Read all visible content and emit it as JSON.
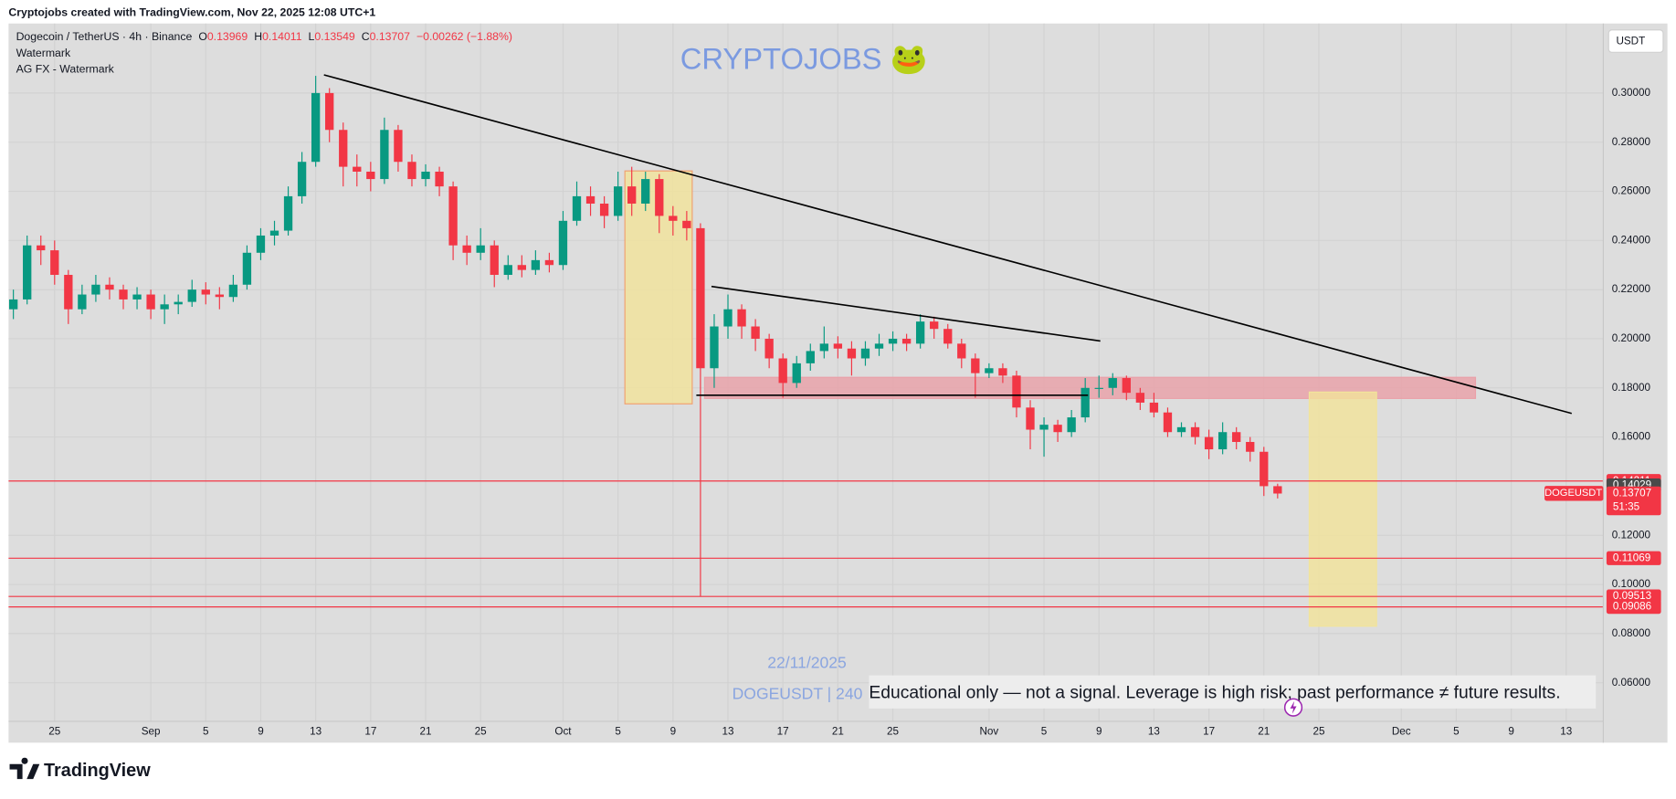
{
  "header": {
    "credit": "Cryptojobs created with TradingView.com, Nov 22, 2025 12:08 UTC+1",
    "watermark": "Watermark",
    "watermark2": "AG FX - Watermark",
    "brand": "CRYPTOJOBS 🐸",
    "currency": "USDT",
    "date_stamp": "22/11/2025",
    "symbol_stamp": "DOGEUSDT | 240",
    "disclaimer": "Educational only — not a signal. Leverage is high risk; past performance ≠ future results.",
    "logo": "TradingView"
  },
  "chart_data": {
    "type": "candlestick",
    "symbol": "Dogecoin / TetherUS · 4h · Binance",
    "ohlc_legend": {
      "o_label": "O",
      "o": 0.13969,
      "h_label": "H",
      "h": 0.14011,
      "l_label": "L",
      "l": 0.13549,
      "c_label": "C",
      "c": 0.13707,
      "change": "−0.00262 (−1.88%)"
    },
    "x": [
      -3,
      -2,
      -1,
      0,
      1,
      2,
      3,
      4,
      5,
      6,
      7,
      8,
      9,
      10,
      11,
      12,
      13,
      14,
      15,
      16,
      17,
      18,
      19,
      20,
      21,
      22,
      23,
      24,
      25,
      26,
      27,
      28,
      29,
      30,
      31,
      32,
      33,
      34,
      35,
      36,
      37,
      38,
      39,
      40,
      41,
      42,
      43,
      44,
      45,
      46,
      47,
      48,
      49,
      50,
      51,
      52,
      53,
      54,
      55,
      56,
      57,
      58,
      59,
      60,
      61,
      62,
      63,
      64,
      65,
      66,
      67,
      68,
      69,
      70,
      71,
      72,
      73,
      74,
      75,
      76,
      77,
      78,
      79,
      80,
      81,
      82,
      83,
      84,
      85,
      86,
      87,
      88,
      89
    ],
    "open": [
      0.212,
      0.216,
      0.238,
      0.236,
      0.226,
      0.212,
      0.218,
      0.222,
      0.22,
      0.216,
      0.218,
      0.212,
      0.214,
      0.215,
      0.22,
      0.218,
      0.217,
      0.222,
      0.235,
      0.242,
      0.244,
      0.258,
      0.272,
      0.3,
      0.285,
      0.27,
      0.268,
      0.265,
      0.285,
      0.272,
      0.265,
      0.268,
      0.262,
      0.238,
      0.235,
      0.238,
      0.226,
      0.23,
      0.228,
      0.232,
      0.23,
      0.248,
      0.258,
      0.255,
      0.25,
      0.262,
      0.255,
      0.265,
      0.25,
      0.248,
      0.245,
      0.188,
      0.205,
      0.212,
      0.205,
      0.2,
      0.192,
      0.182,
      0.19,
      0.195,
      0.198,
      0.196,
      0.192,
      0.196,
      0.198,
      0.2,
      0.198,
      0.207,
      0.204,
      0.198,
      0.192,
      0.186,
      0.188,
      0.185,
      0.172,
      0.163,
      0.165,
      0.162,
      0.168,
      0.18,
      0.18,
      0.184,
      0.178,
      0.174,
      0.17,
      0.162,
      0.164,
      0.16,
      0.155,
      0.162,
      0.158,
      0.154,
      0.14
    ],
    "high": [
      0.22,
      0.242,
      0.242,
      0.24,
      0.228,
      0.222,
      0.226,
      0.225,
      0.222,
      0.221,
      0.22,
      0.218,
      0.218,
      0.224,
      0.223,
      0.221,
      0.226,
      0.238,
      0.245,
      0.248,
      0.262,
      0.276,
      0.307,
      0.302,
      0.288,
      0.275,
      0.272,
      0.29,
      0.287,
      0.275,
      0.271,
      0.27,
      0.264,
      0.242,
      0.245,
      0.24,
      0.234,
      0.234,
      0.236,
      0.235,
      0.252,
      0.264,
      0.262,
      0.258,
      0.268,
      0.27,
      0.268,
      0.267,
      0.254,
      0.252,
      0.247,
      0.21,
      0.218,
      0.214,
      0.208,
      0.202,
      0.194,
      0.193,
      0.198,
      0.205,
      0.201,
      0.199,
      0.199,
      0.202,
      0.203,
      0.202,
      0.21,
      0.209,
      0.206,
      0.2,
      0.194,
      0.19,
      0.19,
      0.187,
      0.175,
      0.168,
      0.167,
      0.171,
      0.184,
      0.185,
      0.186,
      0.185,
      0.18,
      0.178,
      0.172,
      0.166,
      0.166,
      0.163,
      0.166,
      0.164,
      0.16,
      0.156,
      0.141
    ],
    "low": [
      0.208,
      0.214,
      0.23,
      0.222,
      0.206,
      0.21,
      0.215,
      0.216,
      0.212,
      0.212,
      0.208,
      0.206,
      0.21,
      0.213,
      0.214,
      0.212,
      0.215,
      0.22,
      0.232,
      0.238,
      0.242,
      0.255,
      0.27,
      0.28,
      0.262,
      0.262,
      0.26,
      0.263,
      0.268,
      0.262,
      0.262,
      0.258,
      0.232,
      0.23,
      0.232,
      0.221,
      0.224,
      0.225,
      0.226,
      0.227,
      0.228,
      0.246,
      0.25,
      0.245,
      0.248,
      0.25,
      0.252,
      0.243,
      0.242,
      0.24,
      0.095,
      0.18,
      0.2,
      0.2,
      0.195,
      0.188,
      0.176,
      0.18,
      0.187,
      0.192,
      0.192,
      0.185,
      0.189,
      0.193,
      0.195,
      0.195,
      0.196,
      0.2,
      0.196,
      0.188,
      0.176,
      0.184,
      0.182,
      0.168,
      0.155,
      0.152,
      0.158,
      0.16,
      0.166,
      0.176,
      0.177,
      0.175,
      0.171,
      0.168,
      0.16,
      0.16,
      0.157,
      0.151,
      0.153,
      0.155,
      0.15,
      0.136,
      0.135
    ],
    "close": [
      0.216,
      0.238,
      0.236,
      0.226,
      0.212,
      0.218,
      0.222,
      0.22,
      0.216,
      0.218,
      0.212,
      0.214,
      0.215,
      0.22,
      0.218,
      0.217,
      0.222,
      0.235,
      0.242,
      0.244,
      0.258,
      0.272,
      0.3,
      0.285,
      0.27,
      0.268,
      0.265,
      0.285,
      0.272,
      0.265,
      0.268,
      0.262,
      0.238,
      0.235,
      0.238,
      0.226,
      0.23,
      0.228,
      0.232,
      0.23,
      0.248,
      0.258,
      0.255,
      0.25,
      0.262,
      0.255,
      0.265,
      0.25,
      0.248,
      0.245,
      0.188,
      0.205,
      0.212,
      0.205,
      0.2,
      0.192,
      0.182,
      0.19,
      0.195,
      0.198,
      0.196,
      0.192,
      0.196,
      0.198,
      0.2,
      0.198,
      0.207,
      0.204,
      0.198,
      0.192,
      0.186,
      0.188,
      0.185,
      0.172,
      0.163,
      0.165,
      0.162,
      0.168,
      0.18,
      0.18,
      0.184,
      0.178,
      0.174,
      0.17,
      0.162,
      0.164,
      0.16,
      0.155,
      0.162,
      0.158,
      0.154,
      0.14,
      0.137
    ],
    "up_color": "#089981",
    "down_color": "#f23645",
    "xlim": [
      -3.35,
      112.7
    ],
    "xticks": [
      {
        "value": 0,
        "label": "25"
      },
      {
        "value": 7,
        "label": "Sep"
      },
      {
        "value": 11,
        "label": "5"
      },
      {
        "value": 15,
        "label": "9"
      },
      {
        "value": 19,
        "label": "13"
      },
      {
        "value": 23,
        "label": "17"
      },
      {
        "value": 27,
        "label": "21"
      },
      {
        "value": 31,
        "label": "25"
      },
      {
        "value": 37,
        "label": "Oct"
      },
      {
        "value": 41,
        "label": "5"
      },
      {
        "value": 45,
        "label": "9"
      },
      {
        "value": 49,
        "label": "13"
      },
      {
        "value": 53,
        "label": "17"
      },
      {
        "value": 57,
        "label": "21"
      },
      {
        "value": 61,
        "label": "25"
      },
      {
        "value": 68,
        "label": "Nov"
      },
      {
        "value": 72,
        "label": "5"
      },
      {
        "value": 76,
        "label": "9"
      },
      {
        "value": 80,
        "label": "13"
      },
      {
        "value": 84,
        "label": "17"
      },
      {
        "value": 88,
        "label": "21"
      },
      {
        "value": 92,
        "label": "25"
      },
      {
        "value": 98,
        "label": "Dec"
      },
      {
        "value": 102,
        "label": "5"
      },
      {
        "value": 106,
        "label": "9"
      },
      {
        "value": 110,
        "label": "13"
      }
    ],
    "ylim": [
      0.0443,
      0.3283
    ],
    "yticks": [
      {
        "value": 0.3,
        "label": "0.30000"
      },
      {
        "value": 0.28,
        "label": "0.28000"
      },
      {
        "value": 0.26,
        "label": "0.26000"
      },
      {
        "value": 0.24,
        "label": "0.24000"
      },
      {
        "value": 0.22,
        "label": "0.22000"
      },
      {
        "value": 0.2,
        "label": "0.20000"
      },
      {
        "value": 0.18,
        "label": "0.18000"
      },
      {
        "value": 0.16,
        "label": "0.16000"
      },
      {
        "value": 0.12,
        "label": "0.12000"
      },
      {
        "value": 0.1,
        "label": "0.10000"
      },
      {
        "value": 0.08,
        "label": "0.08000"
      },
      {
        "value": 0.06,
        "label": "0.06000"
      }
    ],
    "grid": true,
    "levels": [
      0.14211,
      0.11069,
      0.09513,
      0.09086
    ],
    "level_color": "#f23645",
    "marker_price": 0.14029,
    "last_price": 0.13707,
    "last_label": "DOGEUSDT",
    "countdown": "51:35",
    "zones": [
      {
        "x": [
          41.5,
          46.4
        ],
        "y": [
          0.1735,
          0.2683
        ],
        "color": "#f2e49a",
        "stroke": "#f0a070"
      },
      {
        "x": [
          47.3,
          103.4
        ],
        "y": [
          0.1757,
          0.1843
        ],
        "color": "#eaa0a8",
        "stroke": "#eaa0a8"
      },
      {
        "x": [
          91.3,
          96.2
        ],
        "y": [
          0.083,
          0.1783
        ],
        "color": "#f2e49a",
        "stroke": "#f2e49a"
      }
    ],
    "trendlines": [
      {
        "x": [
          19.6,
          110.4
        ],
        "y": [
          0.3074,
          0.1696
        ],
        "color": "#000000"
      },
      {
        "x": [
          47.8,
          76.1
        ],
        "y": [
          0.2213,
          0.1991
        ],
        "color": "#000000"
      },
      {
        "x": [
          46.7,
          75.2
        ],
        "y": [
          0.177,
          0.177
        ],
        "color": "#000000"
      }
    ]
  }
}
